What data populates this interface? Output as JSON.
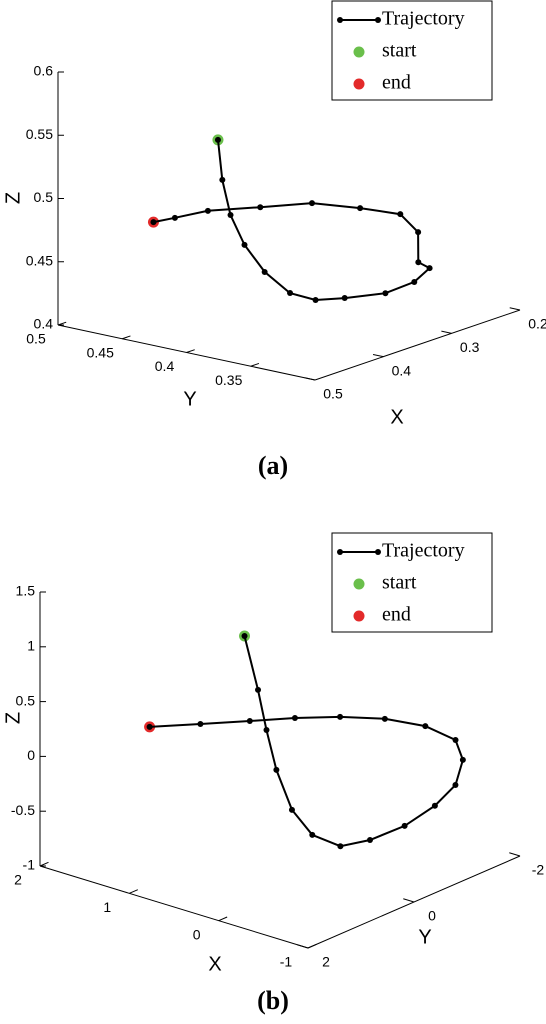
{
  "chart_data": [
    {
      "type": "line3d",
      "caption": "(a)",
      "x_label": "X",
      "y_label": "Y",
      "z_label": "Z",
      "xlim": [
        0.2,
        0.5
      ],
      "ylim": [
        0.3,
        0.5
      ],
      "zlim": [
        0.4,
        0.6
      ],
      "xticks": [
        0.5,
        0.4,
        0.3,
        0.2
      ],
      "yticks": [
        0.5,
        0.45,
        0.4,
        0.35
      ],
      "zticks": [
        0.4,
        0.45,
        0.5,
        0.55,
        0.6
      ],
      "legend": "upper right",
      "series": [
        {
          "name": "Trajectory",
          "color": "#000000",
          "x": [
            0.422,
            0.425,
            0.413,
            0.417,
            0.427,
            0.435,
            0.439,
            0.434,
            0.365,
            0.319,
            0.274,
            0.298,
            0.319,
            0.315,
            0.355,
            0.369,
            0.409,
            0.448,
            0.485,
            0.475
          ],
          "y": [
            0.417,
            0.412,
            0.412,
            0.399,
            0.378,
            0.354,
            0.332,
            0.312,
            0.317,
            0.319,
            0.331,
            0.327,
            0.316,
            0.332,
            0.342,
            0.372,
            0.391,
            0.411,
            0.417,
            0.439
          ],
          "z": [
            0.55,
            0.52,
            0.49,
            0.47,
            0.455,
            0.445,
            0.445,
            0.45,
            0.44,
            0.44,
            0.44,
            0.45,
            0.48,
            0.49,
            0.5,
            0.5,
            0.5,
            0.5,
            0.5,
            0.49
          ]
        },
        {
          "name": "start",
          "color": "#6abf4b",
          "x": [
            0.422
          ],
          "y": [
            0.417
          ],
          "z": [
            0.55
          ]
        },
        {
          "name": "end",
          "color": "#e32a2a",
          "x": [
            0.475
          ],
          "y": [
            0.439
          ],
          "z": [
            0.49
          ]
        }
      ]
    },
    {
      "type": "line3d",
      "caption": "(b)",
      "x_label": "X",
      "y_label": "Y",
      "z_label": "Z",
      "xlim": [
        -1,
        2
      ],
      "ylim": [
        -2,
        2
      ],
      "zlim": [
        -1,
        1.5
      ],
      "xticks": [
        2,
        1,
        0,
        -1
      ],
      "yticks": [
        2,
        0,
        -2
      ],
      "zticks": [
        -1,
        -0.5,
        0,
        0.5,
        1,
        1.5
      ],
      "legend": "upper right",
      "series": [
        {
          "name": "Trajectory",
          "color": "#000000",
          "x": [
            0.82,
            0.58,
            0.58,
            0.41,
            0.2,
            0.02,
            -0.17,
            -0.27,
            -0.45,
            -0.51,
            -0.58,
            -0.58,
            -0.48,
            -0.32,
            -0.11,
            0.13,
            0.41,
            0.66,
            0.94,
            1.23
          ],
          "y": [
            0.13,
            0.28,
            0.12,
            0.22,
            0.28,
            0.2,
            -0.01,
            -0.4,
            -0.75,
            -1.22,
            -1.49,
            -1.63,
            -1.66,
            -1.36,
            -0.95,
            -0.51,
            -0.13,
            0.3,
            0.76,
            1.23
          ],
          "z": [
            1.0,
            0.6,
            0.2,
            -0.1,
            -0.4,
            -0.6,
            -0.7,
            -0.7,
            -0.6,
            -0.5,
            -0.35,
            -0.15,
            0,
            0.15,
            0.25,
            0.3,
            0.3,
            0.3,
            0.3,
            0.3
          ]
        },
        {
          "name": "start",
          "color": "#6abf4b",
          "x": [
            0.82
          ],
          "y": [
            0.13
          ],
          "z": [
            1.0
          ]
        },
        {
          "name": "end",
          "color": "#e32a2a",
          "x": [
            1.23
          ],
          "y": [
            1.23
          ],
          "z": [
            0.3
          ]
        }
      ]
    }
  ]
}
